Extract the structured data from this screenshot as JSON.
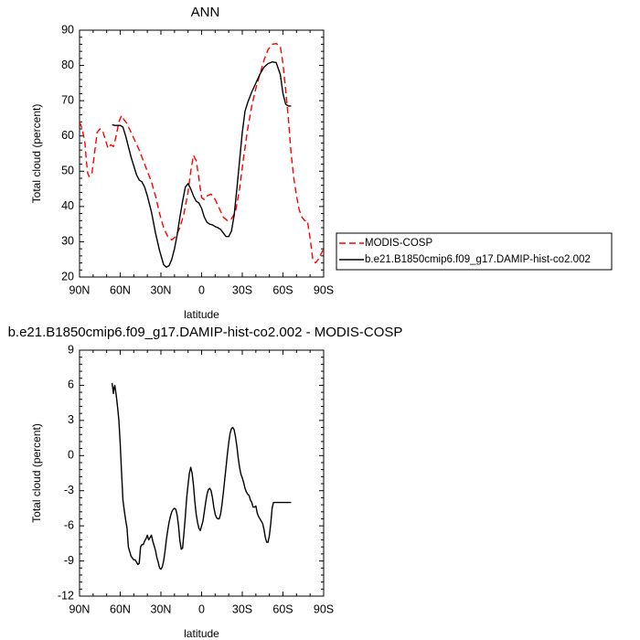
{
  "chart_data": [
    {
      "type": "line",
      "title": "ANN",
      "xlabel": "latitude",
      "ylabel": "Total cloud (percent)",
      "xlim": [
        90,
        -90
      ],
      "ylim": [
        20,
        90
      ],
      "x_ticks": [
        90,
        60,
        30,
        0,
        -30,
        -60,
        -90
      ],
      "x_tick_labels": [
        "90N",
        "60N",
        "30N",
        "0",
        "30S",
        "60S",
        "90S"
      ],
      "y_ticks": [
        20,
        30,
        40,
        50,
        60,
        70,
        80,
        90
      ],
      "y_tick_labels": [
        "20",
        "30",
        "40",
        "50",
        "60",
        "70",
        "80",
        "90"
      ],
      "grid": false,
      "legend": "right",
      "series": [
        {
          "name": "MODIS-COSP",
          "color": "#ff0000",
          "dash": "dashed",
          "x": [
            90,
            88,
            86,
            85,
            84,
            83,
            81,
            79,
            77,
            75,
            73,
            71,
            69,
            67,
            65,
            63,
            61,
            59,
            57,
            55,
            52,
            49,
            46,
            43,
            40,
            37,
            34,
            31,
            28,
            25,
            22,
            19,
            16,
            13,
            10,
            8,
            6,
            4,
            2,
            0,
            -2,
            -4,
            -7,
            -10,
            -13,
            -16,
            -19,
            -22,
            -25,
            -28,
            -31,
            -34,
            -37,
            -40,
            -43,
            -46,
            -49,
            -52,
            -55,
            -58,
            -60,
            -62,
            -64,
            -66,
            -68,
            -70,
            -72,
            -74,
            -76,
            -78,
            -80,
            -82,
            -84,
            -86,
            -88,
            -90
          ],
          "y": [
            64,
            62,
            58,
            53,
            49.5,
            48.5,
            49,
            55,
            61,
            62,
            61.5,
            59,
            56.5,
            57.5,
            57,
            60,
            64,
            65.8,
            64.5,
            63.5,
            61,
            58.5,
            56,
            53,
            50,
            47,
            43,
            38,
            34,
            31.5,
            30.5,
            31.5,
            34,
            38,
            44,
            50,
            54.5,
            53,
            48,
            42.5,
            42,
            43,
            43.5,
            42,
            39.5,
            37,
            36,
            36.5,
            38.5,
            45,
            54,
            62,
            68.5,
            73.5,
            77.5,
            81.5,
            84.5,
            86,
            86.2,
            85.5,
            80.5,
            73,
            65,
            55,
            48,
            43,
            39,
            37,
            36,
            36,
            31,
            25,
            24,
            25,
            26.5,
            28
          ]
        },
        {
          "name": "b.e21.B1850cmip6.f09_g17.DAMIP-hist-co2.002",
          "color": "#000000",
          "dash": "solid",
          "x": [
            66,
            64,
            62,
            60,
            58,
            56,
            54,
            52,
            50,
            48,
            46,
            44,
            42,
            40,
            37,
            34,
            31,
            28,
            26,
            24,
            22,
            20,
            18,
            16,
            14,
            12,
            10,
            8,
            6,
            4,
            2,
            0,
            -2,
            -4,
            -6,
            -8,
            -10,
            -12,
            -14,
            -16,
            -18,
            -20,
            -22,
            -24,
            -26,
            -28,
            -30,
            -32,
            -34,
            -37,
            -40,
            -43,
            -46,
            -49,
            -52,
            -55,
            -58,
            -60,
            -62,
            -64,
            -66
          ],
          "y": [
            63.2,
            63,
            63,
            63,
            62.5,
            60,
            57,
            54,
            51.5,
            49,
            47.5,
            47,
            45.5,
            43,
            38.5,
            32.5,
            27.5,
            23.5,
            22.8,
            23.2,
            25,
            28,
            32,
            37,
            41.5,
            45.5,
            46.5,
            45,
            43,
            41.5,
            41,
            39.5,
            37,
            35.5,
            35,
            34.8,
            34.3,
            34,
            33.5,
            32.5,
            31.5,
            31.5,
            33,
            37.5,
            45,
            53,
            61,
            67,
            69.5,
            72.5,
            75,
            77.5,
            79.5,
            80.5,
            81,
            80.8,
            77.5,
            72,
            69,
            68.5,
            68.5
          ]
        }
      ]
    },
    {
      "type": "line",
      "title": "b.e21.B1850cmip6.f09_g17.DAMIP-hist-co2.002 - MODIS-COSP",
      "xlabel": "latitude",
      "ylabel": "Total cloud (percent)",
      "xlim": [
        90,
        -90
      ],
      "ylim": [
        -12,
        9
      ],
      "x_ticks": [
        90,
        60,
        30,
        0,
        -30,
        -60,
        -90
      ],
      "x_tick_labels": [
        "90N",
        "60N",
        "30N",
        "0",
        "30S",
        "60S",
        "90S"
      ],
      "y_ticks": [
        -12,
        -9,
        -6,
        -3,
        0,
        3,
        6,
        9
      ],
      "y_tick_labels": [
        "-12",
        "-9",
        "-6",
        "-3",
        "0",
        "3",
        "6",
        "9"
      ],
      "grid": false,
      "series": [
        {
          "color": "#000000",
          "dash": "solid",
          "x": [
            66,
            65,
            64.5,
            64,
            63,
            62,
            61,
            60,
            59,
            58,
            57,
            56,
            55,
            54,
            52,
            50,
            49,
            48,
            47,
            46,
            45,
            44,
            43,
            42,
            41,
            40,
            39,
            38,
            37,
            36,
            35,
            34,
            33,
            32,
            31,
            30,
            29,
            28,
            27,
            26,
            25,
            24,
            23,
            22,
            21,
            20,
            19,
            18,
            17,
            16,
            15,
            14,
            13,
            12,
            11,
            10,
            9,
            8,
            7,
            6,
            5,
            4,
            3,
            2,
            1,
            0,
            -1,
            -2,
            -3,
            -4,
            -5,
            -6,
            -7,
            -8,
            -9,
            -10,
            -11,
            -12,
            -13,
            -14,
            -15,
            -16,
            -17,
            -18,
            -19,
            -20,
            -21,
            -22,
            -23,
            -24,
            -25,
            -26,
            -27,
            -28,
            -29,
            -30,
            -31,
            -32,
            -33,
            -34,
            -35,
            -36,
            -37,
            -38,
            -39,
            -40,
            -41,
            -42,
            -43,
            -44,
            -45,
            -46,
            -47,
            -48,
            -49,
            -50,
            -51,
            -52,
            -53,
            -54,
            -55,
            -56,
            -57,
            -58,
            -59,
            -60,
            -61,
            -62,
            -63,
            -64,
            -65,
            -66
          ],
          "y": [
            6.2,
            5.3,
            5.8,
            6,
            5.2,
            4.2,
            3,
            1,
            -1.5,
            -3.8,
            -4.7,
            -5.5,
            -6.2,
            -7.8,
            -8.6,
            -8.9,
            -8.9,
            -9.1,
            -9.3,
            -9.2,
            -7.8,
            -7.6,
            -7.6,
            -7.3,
            -7.1,
            -6.8,
            -7.2,
            -7.0,
            -6.8,
            -7.3,
            -7.7,
            -8.1,
            -8.7,
            -9.1,
            -9.6,
            -9.7,
            -9.5,
            -9.0,
            -8.2,
            -7.2,
            -6.4,
            -5.7,
            -5.2,
            -4.8,
            -4.6,
            -4.5,
            -4.6,
            -5.1,
            -6.0,
            -7.3,
            -8.0,
            -7.9,
            -6.6,
            -5.2,
            -3.6,
            -2.5,
            -1.5,
            -1.0,
            -1.5,
            -2.5,
            -3.9,
            -5.0,
            -5.7,
            -6.2,
            -6.4,
            -6.0,
            -5.6,
            -4.8,
            -4.0,
            -3.3,
            -2.9,
            -2.8,
            -3.0,
            -3.6,
            -4.4,
            -5.0,
            -5.3,
            -5.4,
            -5.4,
            -5.0,
            -4.2,
            -3.2,
            -2.1,
            -1.0,
            0.1,
            1.1,
            1.9,
            2.3,
            2.4,
            2.2,
            1.6,
            0.8,
            -0.2,
            -1.0,
            -1.6,
            -1.9,
            -2.3,
            -2.8,
            -3.1,
            -3.3,
            -3.4,
            -3.8,
            -4.0,
            -4.4,
            -4.4,
            -4.3,
            -4.9,
            -5.2,
            -5.4,
            -5.6,
            -5.8,
            -6.3,
            -7.0,
            -7.4,
            -7.4,
            -6.8,
            -5.8,
            -4.5,
            -4.0,
            -4.0,
            -4.0,
            -4.0,
            -4.0,
            -4.0,
            -4.0,
            -4.0,
            -4.0,
            -4.0,
            -4.0,
            -4.0,
            -4.0,
            -4.0
          ]
        }
      ]
    }
  ]
}
